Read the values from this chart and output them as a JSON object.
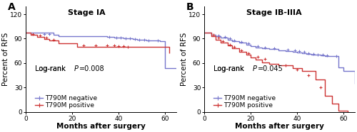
{
  "panel_A": {
    "title": "Stage IA",
    "label": "A",
    "pvalue_text": "Log-rank ",
    "pvalue_italic": "P",
    "pvalue_rest": "=0.008",
    "negative": {
      "color": "#7777cc",
      "step_x": [
        0,
        4,
        12,
        14,
        22,
        35,
        38,
        40,
        42,
        44,
        46,
        48,
        50,
        52,
        55,
        58,
        60,
        65
      ],
      "step_y": [
        97,
        97,
        95,
        93,
        93,
        92,
        91.5,
        91,
        90.5,
        90,
        89.5,
        89,
        88.5,
        88,
        87.5,
        87,
        54,
        54
      ],
      "censors_x": [
        8,
        10,
        36,
        39,
        41,
        43,
        45,
        47,
        49,
        51,
        53,
        57
      ],
      "censors_y": [
        96,
        95.5,
        92,
        91.5,
        91,
        90.5,
        90,
        89.5,
        89,
        88.5,
        88,
        87.5
      ]
    },
    "positive": {
      "color": "#cc3333",
      "step_x": [
        0,
        2,
        5,
        8,
        10,
        14,
        22,
        55,
        62
      ],
      "step_y": [
        97,
        95,
        92,
        89.5,
        88,
        84,
        80,
        80,
        72
      ],
      "censors_x": [
        3,
        6,
        9,
        12,
        25,
        30,
        35,
        38,
        40,
        42,
        44
      ],
      "censors_y": [
        96,
        93.5,
        91,
        88.5,
        82,
        82,
        82,
        82,
        81,
        80.5,
        80
      ]
    },
    "xlim": [
      0,
      65
    ],
    "ylim": [
      0,
      130
    ],
    "yticks": [
      0,
      30,
      60,
      90,
      120
    ],
    "xticks": [
      0,
      20,
      40,
      60
    ]
  },
  "panel_B": {
    "title": "Stage IB-IIIA",
    "label": "B",
    "pvalue_text": "Log-rank ",
    "pvalue_italic": "P",
    "pvalue_rest": "=0.045",
    "negative": {
      "color": "#7777cc",
      "step_x": [
        0,
        3,
        5,
        7,
        10,
        12,
        15,
        18,
        20,
        22,
        25,
        28,
        32,
        35,
        38,
        40,
        42,
        44,
        46,
        48,
        50,
        52,
        55,
        58,
        60,
        65
      ],
      "step_y": [
        97,
        95,
        93,
        91,
        89,
        87,
        85,
        83,
        81,
        79,
        78,
        77,
        76,
        75,
        74,
        73,
        72,
        71,
        70.5,
        70,
        69.5,
        69,
        68.5,
        55,
        50,
        35
      ],
      "censors_x": [
        6,
        9,
        11,
        13,
        16,
        19,
        23,
        26,
        30,
        36,
        39,
        41,
        43,
        45,
        47,
        49,
        51,
        53,
        57
      ],
      "censors_y": [
        94,
        92,
        90,
        88,
        86,
        84,
        80.5,
        79.5,
        78.5,
        76.5,
        75.5,
        74.5,
        73.5,
        72.5,
        71.5,
        70.5,
        70,
        69.5,
        69
      ]
    },
    "positive": {
      "color": "#cc3333",
      "step_x": [
        0,
        3,
        5,
        7,
        10,
        12,
        15,
        18,
        20,
        22,
        25,
        28,
        32,
        38,
        42,
        48,
        52,
        55,
        58,
        62
      ],
      "step_y": [
        97,
        93,
        89,
        85,
        82,
        78,
        74,
        70,
        67,
        64,
        61,
        59,
        57,
        54,
        50,
        40,
        20,
        10,
        2,
        0
      ],
      "censors_x": [
        4,
        6,
        8,
        11,
        13,
        16,
        19,
        23,
        26,
        35,
        40,
        45,
        50
      ],
      "censors_y": [
        95,
        91,
        87,
        83,
        80,
        76,
        72,
        68,
        65.5,
        57.5,
        52,
        45,
        30
      ]
    },
    "xlim": [
      0,
      65
    ],
    "ylim": [
      0,
      130
    ],
    "yticks": [
      0,
      30,
      60,
      90,
      120
    ],
    "xticks": [
      0,
      20,
      40,
      60
    ]
  },
  "ylabel": "Percent of RFS",
  "xlabel": "Months after surgery",
  "neg_label": "T790M negative",
  "pos_label": "T790M positive",
  "bg_color": "#ffffff",
  "tick_fontsize": 6.5,
  "label_fontsize": 7.5,
  "title_fontsize": 8,
  "pvalue_fontsize": 7,
  "legend_fontsize": 6.5
}
